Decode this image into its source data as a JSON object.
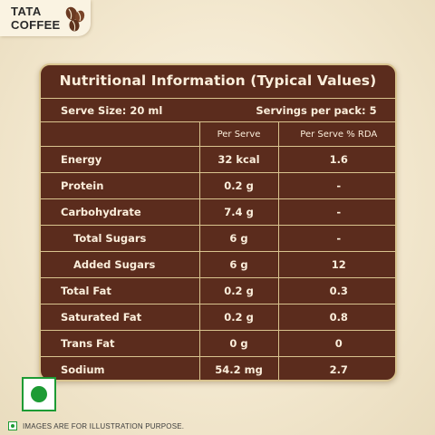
{
  "brand": {
    "line1": "TATA",
    "line2": "COFFEE"
  },
  "panel": {
    "title": "Nutritional Information (Typical Values)",
    "serve_size": "Serve Size: 20 ml",
    "servings": "Servings per pack: 5",
    "col_per_serve": "Per Serve",
    "col_rda": "Per Serve % RDA",
    "rows": [
      {
        "name": "Energy",
        "per_serve": "32 kcal",
        "rda": "1.6"
      },
      {
        "name": "Protein",
        "per_serve": "0.2 g",
        "rda": "-"
      },
      {
        "name": "Carbohydrate",
        "per_serve": "7.4 g",
        "rda": "-"
      },
      {
        "name": "Total Sugars",
        "per_serve": "6 g",
        "rda": "-"
      },
      {
        "name": "Added Sugars",
        "per_serve": "6 g",
        "rda": "12"
      },
      {
        "name": "Total Fat",
        "per_serve": "0.2 g",
        "rda": "0.3"
      },
      {
        "name": "Saturated Fat",
        "per_serve": "0.2 g",
        "rda": "0.8"
      },
      {
        "name": "Trans Fat",
        "per_serve": "0 g",
        "rda": "0"
      },
      {
        "name": "Sodium",
        "per_serve": "54.2 mg",
        "rda": "2.7"
      }
    ]
  },
  "footer": {
    "note": "IMAGES ARE FOR ILLUSTRATION PURPOSE."
  },
  "icons": {
    "logo_icon": "coffee-beans-icon",
    "veg_mark": "vegetarian-mark-icon"
  },
  "colors": {
    "panel_bg": "#5b2c1d",
    "panel_border": "#d9c48f",
    "text_light": "#fbeedb",
    "veg_green": "#1d9b34"
  }
}
